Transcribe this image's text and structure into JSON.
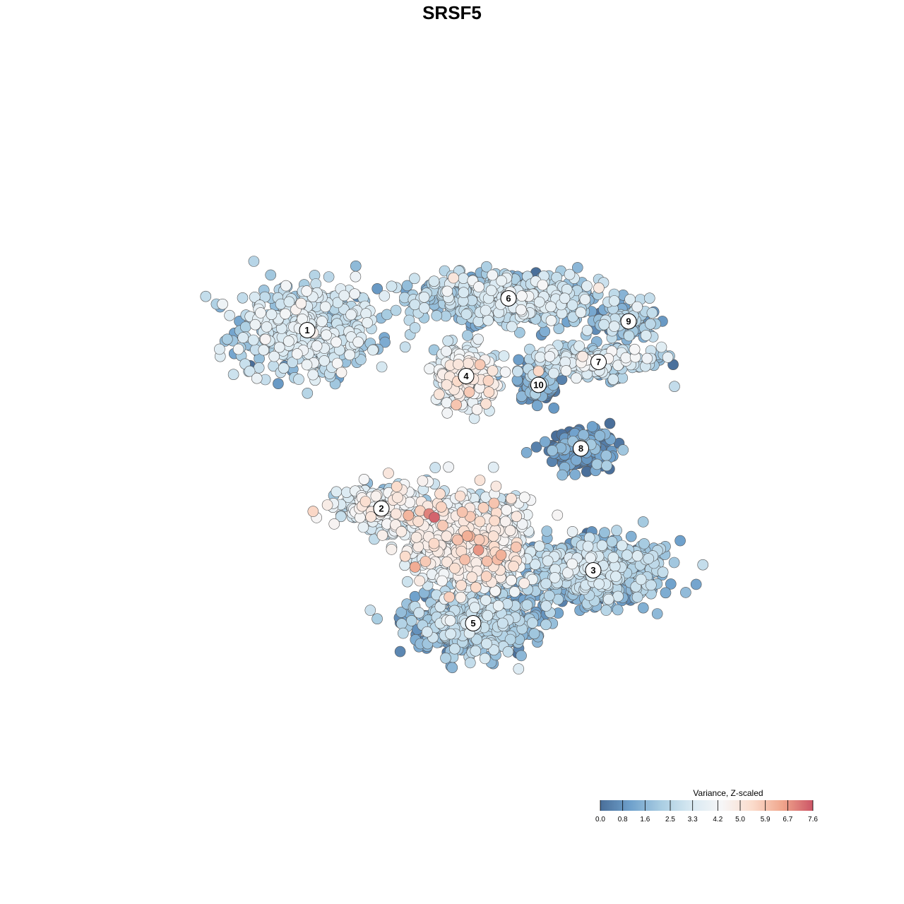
{
  "chart_data": {
    "type": "scatter",
    "title": "SRSF5",
    "xlabel": "",
    "ylabel": "",
    "grid": false,
    "legend": {
      "title": "Variance, Z-scaled",
      "placement": "bottom-right",
      "ticks": [
        "0.0",
        "0.8",
        "1.6",
        "2.5",
        "3.3",
        "4.2",
        "5.0",
        "5.9",
        "6.7",
        "7.6"
      ],
      "range": [
        0,
        7.6
      ],
      "colors": [
        "#4a6f9a",
        "#6fa1cc",
        "#a9cde2",
        "#d8e9f2",
        "#f6f6f7",
        "#fbdccc",
        "#f0a68c",
        "#cc5566"
      ]
    },
    "clusters": [
      {
        "label": "1",
        "x": -8.2,
        "y": 6.1,
        "n": 520,
        "spread": [
          4.0,
          2.6
        ],
        "mean_value": 2.6
      },
      {
        "label": "6",
        "x": 3.2,
        "y": 7.9,
        "n": 600,
        "spread": [
          5.2,
          1.4
        ],
        "mean_value": 2.3
      },
      {
        "label": "4",
        "x": 0.8,
        "y": 3.5,
        "n": 300,
        "spread": [
          1.8,
          1.6
        ],
        "mean_value": 3.6
      },
      {
        "label": "9",
        "x": 10.0,
        "y": 6.6,
        "n": 110,
        "spread": [
          1.8,
          0.9
        ],
        "mean_value": 1.8
      },
      {
        "label": "7",
        "x": 8.3,
        "y": 4.3,
        "n": 230,
        "spread": [
          3.6,
          0.9
        ],
        "mean_value": 2.6
      },
      {
        "label": "10",
        "x": 4.9,
        "y": 3.0,
        "n": 120,
        "spread": [
          1.1,
          1.2
        ],
        "mean_value": 0.9
      },
      {
        "label": "8",
        "x": 7.3,
        "y": -0.6,
        "n": 190,
        "spread": [
          1.8,
          1.0
        ],
        "mean_value": 0.4
      },
      {
        "label": "2",
        "x": -4.0,
        "y": -4.0,
        "n": 280,
        "spread": [
          2.2,
          1.1
        ],
        "mean_value": 3.4
      },
      {
        "label": "3",
        "x": 8.0,
        "y": -7.5,
        "n": 700,
        "spread": [
          3.8,
          1.8
        ],
        "mean_value": 1.8
      },
      {
        "label": "5",
        "x": 1.2,
        "y": -10.5,
        "n": 650,
        "spread": [
          3.4,
          1.6
        ],
        "mean_value": 1.7
      },
      {
        "label": "",
        "x": 1.0,
        "y": -5.8,
        "n": 900,
        "spread": [
          3.2,
          2.6
        ],
        "mean_value": 3.7
      }
    ],
    "hotspots": [
      {
        "x": -1.5,
        "y": -7.0,
        "value": 5.8
      },
      {
        "x": -1.0,
        "y": -4.5,
        "value": 7.4
      },
      {
        "x": -1.3,
        "y": -4.3,
        "value": 7.0
      },
      {
        "x": -4.9,
        "y": -3.6,
        "value": 5.3
      },
      {
        "x": -3.6,
        "y": -2.0,
        "value": 5.0
      },
      {
        "x": 0.7,
        "y": 3.5,
        "value": 5.1
      },
      {
        "x": -0.3,
        "y": 3.0,
        "value": 5.0
      }
    ]
  }
}
